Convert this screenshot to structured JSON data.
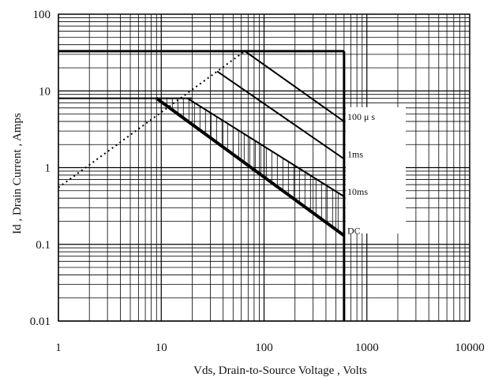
{
  "chart_data": {
    "type": "line",
    "title": "",
    "xlabel": "Vds, Drain-to-Source Voltage , Volts",
    "ylabel": "Id , Drain Current , Amps",
    "x_scale": "log",
    "y_scale": "log",
    "xlim": [
      1,
      10000
    ],
    "ylim": [
      0.01,
      100
    ],
    "x_ticks": [
      1,
      10,
      100,
      1000,
      10000
    ],
    "x_tick_labels": [
      "1",
      "10",
      "100",
      "1000",
      "10000"
    ],
    "y_ticks": [
      0.01,
      0.1,
      1,
      10,
      100
    ],
    "y_tick_labels": [
      "0.01",
      "0.1",
      "1",
      "10",
      "100"
    ],
    "grid": true,
    "series": [
      {
        "name": "DC",
        "style": "bold",
        "x": [
          9,
          600
        ],
        "y": [
          8,
          0.13
        ]
      },
      {
        "name": "10ms",
        "style": "solid",
        "x": [
          18,
          600
        ],
        "y": [
          8,
          0.42
        ]
      },
      {
        "name": "1ms",
        "style": "solid",
        "x": [
          35,
          600
        ],
        "y": [
          18,
          1.3
        ]
      },
      {
        "name": "100 μ s",
        "style": "solid",
        "x": [
          65,
          600
        ],
        "y": [
          33,
          4
        ]
      }
    ],
    "limits": [
      {
        "style": "dotted",
        "x": [
          1,
          65
        ],
        "y": [
          0.55,
          33
        ]
      },
      {
        "style": "bold",
        "x": [
          1,
          600
        ],
        "y": [
          33,
          33
        ]
      },
      {
        "style": "solid",
        "x": [
          1,
          20
        ],
        "y": [
          8,
          8
        ]
      },
      {
        "style": "bold",
        "x": [
          600,
          600
        ],
        "y": [
          33,
          0.01
        ]
      }
    ]
  }
}
